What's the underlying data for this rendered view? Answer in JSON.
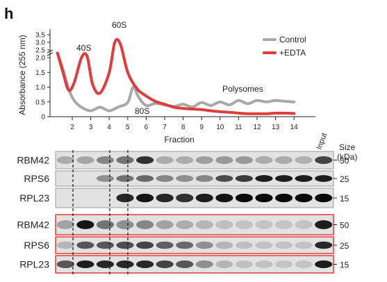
{
  "panel_label": "h",
  "chart_data": {
    "type": "line",
    "xlabel": "Fraction",
    "ylabel": "Absorbance (255 nm)",
    "x_ticks": [
      "2",
      "3",
      "4",
      "5",
      "6",
      "7",
      "8",
      "9",
      "10",
      "11",
      "12",
      "13",
      "14"
    ],
    "y_ticks": [
      "0",
      "0.5",
      "1.0",
      "1.5",
      "2.0",
      "2.5",
      "3.0",
      "3.5"
    ],
    "y_axis_break": true,
    "legend_placement": "top-right",
    "peak_labels": [
      "40S",
      "60S",
      "80S",
      "Polysomes"
    ],
    "series": [
      {
        "name": "Control",
        "color": "#a8a8a8",
        "x": [
          1.2,
          1.5,
          1.8,
          2.1,
          2.5,
          3.0,
          3.5,
          4.0,
          4.5,
          5.0,
          5.3,
          5.6,
          6.0,
          6.5,
          7.0,
          7.5,
          8.0,
          8.5,
          9.0,
          9.5,
          10.0,
          10.5,
          11.0,
          11.5,
          12.0,
          12.5,
          13.0,
          13.5,
          14.0
        ],
        "y": [
          2.3,
          1.6,
          0.95,
          0.55,
          0.32,
          0.2,
          0.32,
          0.2,
          0.33,
          0.48,
          1.0,
          0.65,
          0.38,
          0.45,
          0.4,
          0.35,
          0.42,
          0.33,
          0.48,
          0.38,
          0.5,
          0.4,
          0.55,
          0.44,
          0.55,
          0.5,
          0.55,
          0.52,
          0.5
        ]
      },
      {
        "name": "+EDTA",
        "color": "#e03c3c",
        "x": [
          1.2,
          1.5,
          1.8,
          2.1,
          2.5,
          2.8,
          3.1,
          3.5,
          4.0,
          4.3,
          4.6,
          5.0,
          5.5,
          6.0,
          6.5,
          7.0,
          7.5,
          8.0,
          8.5,
          9.0,
          9.5,
          10.0,
          10.5,
          11.0,
          11.5,
          12.0,
          12.5,
          13.0,
          13.5,
          14.0
        ],
        "y": [
          2.3,
          1.5,
          0.9,
          1.15,
          2.0,
          2.1,
          1.1,
          0.8,
          1.5,
          3.0,
          2.9,
          1.5,
          0.95,
          0.7,
          0.52,
          0.42,
          0.32,
          0.28,
          0.26,
          0.24,
          0.2,
          0.17,
          0.15,
          0.12,
          0.1,
          0.1,
          0.1,
          0.12,
          0.12,
          0.11
        ]
      }
    ]
  },
  "blot": {
    "input_label": "Input",
    "size_header_line1": "Size",
    "size_header_line2": "(kDa)",
    "control_group": {
      "frame_color": "#999999",
      "rows": [
        {
          "label": "RBM42",
          "marker": "50"
        },
        {
          "label": "RPS6",
          "marker": "25"
        },
        {
          "label": "RPL23",
          "marker": "15"
        }
      ]
    },
    "edta_group": {
      "frame_color": "#e03c3c",
      "rows": [
        {
          "label": "RBM42",
          "marker": "50"
        },
        {
          "label": "RPS6",
          "marker": "25"
        },
        {
          "label": "RPL23",
          "marker": "15"
        }
      ]
    },
    "lane_intensities": {
      "control": [
        [
          0.15,
          0.18,
          0.35,
          0.45,
          0.8,
          0.15,
          0.15,
          0.22,
          0.25,
          0.25,
          0.15,
          0.15,
          0.12,
          0.7
        ],
        [
          0.0,
          0.0,
          0.3,
          0.45,
          0.5,
          0.35,
          0.3,
          0.35,
          0.65,
          0.75,
          0.9,
          0.9,
          0.9,
          0.9
        ],
        [
          0.0,
          0.0,
          0.0,
          0.85,
          0.95,
          0.85,
          0.8,
          0.9,
          0.95,
          1.0,
          1.0,
          1.0,
          1.0,
          1.0
        ]
      ],
      "edta": [
        [
          0.2,
          0.95,
          0.45,
          0.3,
          0.35,
          0.2,
          0.15,
          0.1,
          0.05,
          0.03,
          0.02,
          0.02,
          0.02,
          0.9
        ],
        [
          0.1,
          0.6,
          0.6,
          0.65,
          0.7,
          0.55,
          0.5,
          0.3,
          0.1,
          0.05,
          0.03,
          0.03,
          0.03,
          0.85
        ],
        [
          0.6,
          0.9,
          0.85,
          0.85,
          0.85,
          0.7,
          0.6,
          0.3,
          0.1,
          0.05,
          0.03,
          0.02,
          0.02,
          0.9
        ]
      ]
    }
  }
}
